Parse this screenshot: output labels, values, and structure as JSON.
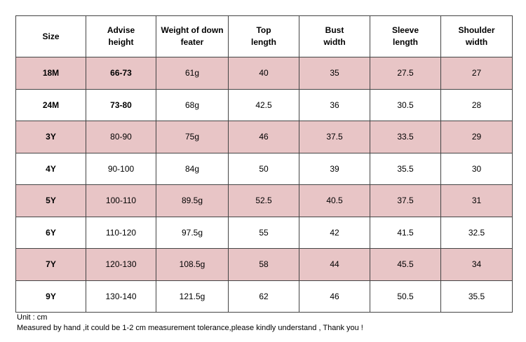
{
  "table": {
    "header": [
      [
        "Size"
      ],
      [
        "Advise",
        "height"
      ],
      [
        "Weight of down",
        "feater"
      ],
      [
        "Top",
        "length"
      ],
      [
        "Bust",
        "width"
      ],
      [
        "Sleeve",
        "length"
      ],
      [
        "Shoulder",
        "width"
      ]
    ],
    "rows": [
      [
        "18M",
        "66-73",
        "61g",
        "40",
        "35",
        "27.5",
        "27"
      ],
      [
        "24M",
        "73-80",
        "68g",
        "42.5",
        "36",
        "30.5",
        "28"
      ],
      [
        "3Y",
        "80-90",
        "75g",
        "46",
        "37.5",
        "33.5",
        "29"
      ],
      [
        "4Y",
        "90-100",
        "84g",
        "50",
        "39",
        "35.5",
        "30"
      ],
      [
        "5Y",
        "100-110",
        "89.5g",
        "52.5",
        "40.5",
        "37.5",
        "31"
      ],
      [
        "6Y",
        "110-120",
        "97.5g",
        "55",
        "42",
        "41.5",
        "32.5"
      ],
      [
        "7Y",
        "120-130",
        "108.5g",
        "58",
        "44",
        "45.5",
        "34"
      ],
      [
        "9Y",
        "130-140",
        "121.5g",
        "62",
        "46",
        "50.5",
        "35.5"
      ]
    ]
  },
  "notes": [
    "Unit : cm",
    "Measured by hand ,it could be 1-2 cm measurement tolerance,please kindly understand , Thank you !"
  ]
}
